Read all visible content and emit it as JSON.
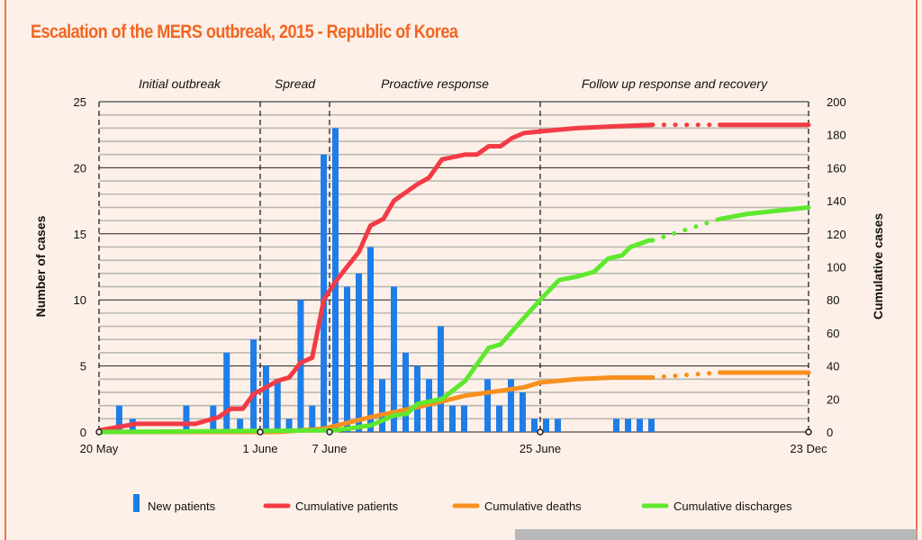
{
  "title": "Escalation of the MERS outbreak, 2015 - Republic of Korea",
  "colors": {
    "title": "#f26522",
    "bars": "#1f7de8",
    "patients": "#f23b45",
    "deaths": "#f7901e",
    "discharges": "#5ee82e",
    "background": "#fdf0e8"
  },
  "chart_data": {
    "type": "bar+line",
    "title": "Escalation of the MERS outbreak, 2015 - Republic of Korea",
    "x_unit": "days since 20 May 2015",
    "xlabel": "",
    "ylabel": "Number of cases",
    "y2label": "Cumulative cases",
    "ylim": [
      0,
      25
    ],
    "y2lim": [
      0,
      200
    ],
    "yticks": [
      0,
      5,
      10,
      15,
      20,
      25
    ],
    "y2ticks": [
      0,
      20,
      40,
      60,
      80,
      100,
      120,
      140,
      160,
      180,
      200
    ],
    "xticks": [
      {
        "day": 0,
        "label": "20 May"
      },
      {
        "day": 12,
        "label": "1 June"
      },
      {
        "day": 18,
        "label": "7 June"
      },
      {
        "day": 36,
        "label": "25 June"
      },
      {
        "day": 217,
        "label": "23 Dec"
      }
    ],
    "phases": [
      {
        "label": "Initial outbreak",
        "start": 0,
        "end": 12
      },
      {
        "label": "Spread",
        "start": 12,
        "end": 18
      },
      {
        "label": "Proactive response",
        "start": 18,
        "end": 36
      },
      {
        "label": "Follow up response and recovery",
        "start": 36,
        "end": 217
      }
    ],
    "grid": true,
    "legend_position": "bottom",
    "bars": {
      "name": "New patients",
      "days": [
        2,
        3,
        7,
        9,
        10,
        11,
        12,
        13,
        14,
        15,
        16,
        17,
        18,
        19,
        20,
        21,
        22,
        23,
        24,
        25,
        26,
        27,
        28,
        29,
        30,
        32,
        33,
        34,
        35,
        36,
        37,
        38,
        43,
        44,
        45,
        46
      ],
      "values": [
        2,
        1,
        2,
        2,
        6,
        1,
        7,
        5,
        4,
        1,
        10,
        2,
        21,
        23,
        11,
        12,
        14,
        4,
        11,
        6,
        5,
        4,
        8,
        2,
        2,
        4,
        2,
        4,
        3,
        1,
        1,
        1,
        1,
        1,
        1,
        1
      ]
    },
    "series": [
      {
        "name": "Cumulative patients",
        "axis": "right",
        "dotted_range": [
          45.6,
          113
        ],
        "points": [
          [
            0,
            1
          ],
          [
            2.8,
            5
          ],
          [
            7.2,
            5
          ],
          [
            8.9,
            9
          ],
          [
            9.8,
            14
          ],
          [
            10.7,
            14
          ],
          [
            11.5,
            23
          ],
          [
            12.5,
            27
          ],
          [
            13.5,
            31
          ],
          [
            14.5,
            33
          ],
          [
            15.5,
            42
          ],
          [
            16.5,
            45
          ],
          [
            17.5,
            80
          ],
          [
            18.5,
            91
          ],
          [
            20.5,
            109
          ],
          [
            21.5,
            125
          ],
          [
            22.6,
            129
          ],
          [
            23.5,
            140
          ],
          [
            25.5,
            150
          ],
          [
            26.5,
            154
          ],
          [
            27.6,
            165
          ],
          [
            29.6,
            168
          ],
          [
            30.6,
            168
          ],
          [
            31.6,
            173
          ],
          [
            32.6,
            173
          ],
          [
            33.6,
            178
          ],
          [
            34.6,
            181
          ],
          [
            36,
            182
          ],
          [
            39.1,
            184
          ],
          [
            42.2,
            185
          ],
          [
            45.6,
            186
          ],
          [
            113,
            186
          ],
          [
            217,
            186
          ]
        ]
      },
      {
        "name": "Cumulative deaths",
        "axis": "right",
        "dotted_range": [
          45.6,
          113
        ],
        "points": [
          [
            0,
            0
          ],
          [
            13.5,
            0
          ],
          [
            17.5,
            2
          ],
          [
            21.5,
            9
          ],
          [
            25.5,
            15
          ],
          [
            29.6,
            22
          ],
          [
            33.6,
            26
          ],
          [
            34.6,
            27
          ],
          [
            36,
            30
          ],
          [
            39.1,
            32
          ],
          [
            42.2,
            33
          ],
          [
            45.6,
            33
          ],
          [
            113,
            36
          ],
          [
            217,
            36
          ]
        ]
      },
      {
        "name": "Cumulative discharges",
        "axis": "right",
        "dotted_range": [
          45.6,
          113
        ],
        "points": [
          [
            0,
            0
          ],
          [
            18.5,
            1
          ],
          [
            21.5,
            4
          ],
          [
            23.5,
            10
          ],
          [
            24.6,
            11
          ],
          [
            25.5,
            17
          ],
          [
            27.6,
            20
          ],
          [
            29.6,
            31
          ],
          [
            31.6,
            51
          ],
          [
            32.6,
            53
          ],
          [
            34.6,
            69
          ],
          [
            36,
            80
          ],
          [
            37.6,
            92
          ],
          [
            39.1,
            94
          ],
          [
            40.6,
            97
          ],
          [
            41.8,
            105
          ],
          [
            43,
            107
          ],
          [
            43.7,
            112
          ],
          [
            45.3,
            116
          ],
          [
            113,
            129
          ],
          [
            145,
            132
          ],
          [
            217,
            136
          ]
        ]
      }
    ]
  }
}
